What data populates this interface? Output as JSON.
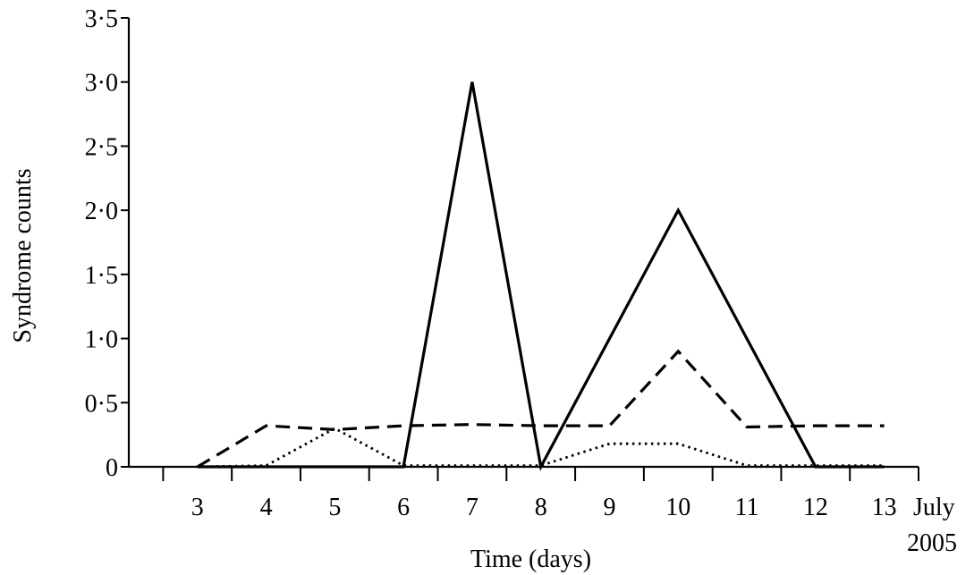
{
  "chart_data": {
    "type": "line",
    "title": "",
    "xlabel": "Time (days)",
    "ylabel": "Syndrome counts",
    "x_unit_label": "July",
    "x_year_label": "2005",
    "x": [
      3,
      4,
      5,
      6,
      7,
      8,
      9,
      10,
      11,
      12,
      13
    ],
    "x_tick_labels": [
      "3",
      "4",
      "5",
      "6",
      "7",
      "8",
      "9",
      "10",
      "11",
      "12",
      "13"
    ],
    "xlim": [
      2,
      13.5
    ],
    "ylim": [
      0,
      3.5
    ],
    "y_ticks": [
      0,
      0.5,
      1.0,
      1.5,
      2.0,
      2.5,
      3.0,
      3.5
    ],
    "y_tick_labels": [
      "0",
      "0·5",
      "1·0",
      "1·5",
      "2·0",
      "2·5",
      "3·0",
      "3·5"
    ],
    "grid": false,
    "legend": "none",
    "series": [
      {
        "style": "solid",
        "values": [
          0,
          0,
          0,
          0,
          3.0,
          0,
          1.0,
          2.0,
          1.0,
          0,
          0
        ]
      },
      {
        "style": "dashed",
        "values": [
          0,
          0.32,
          0.29,
          0.32,
          0.33,
          0.32,
          0.32,
          0.9,
          0.31,
          0.32,
          0.32
        ]
      },
      {
        "style": "dotted",
        "values": [
          0,
          0.01,
          0.3,
          0.01,
          0.01,
          0.01,
          0.18,
          0.18,
          0.01,
          0.01,
          0.01
        ]
      }
    ]
  }
}
